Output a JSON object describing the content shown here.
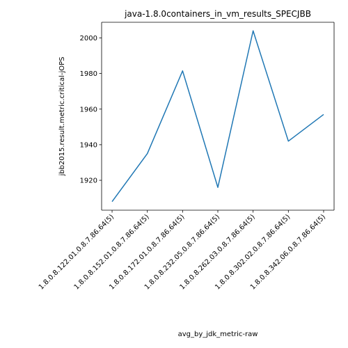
{
  "chart_data": {
    "type": "line",
    "title": "java-1.8.0containers_in_vm_results_SPECJBB",
    "xlabel": "avg_by_jdk_metric-raw",
    "ylabel": "jbb2015.result.metric.critical-jOPS",
    "categories": [
      "1.8.0.8.122.01.0.8.7.86.64(5)",
      "1.8.0.8.152.01.0.8.7.86.64(5)",
      "1.8.0.8.172.01.0.8.7.86.64(5)",
      "1.8.0.8.232.05.0.8.7.86.64(5)",
      "1.8.0.8.262.03.0.8.7.86.64(5)",
      "1.8.0.8.302.02.0.8.7.86.64(5)",
      "1.8.0.8.342.06.0.8.7.86.64(5)"
    ],
    "series": [
      {
        "values": [
          1908,
          1935,
          1981.5,
          1916,
          2004,
          1942,
          1957
        ],
        "color": "#1f77b4"
      }
    ],
    "ylim": [
      1903.2,
      2008.8
    ],
    "yticks": [
      1920,
      1940,
      1960,
      1980,
      2000
    ],
    "grid": false,
    "legend": "none"
  }
}
